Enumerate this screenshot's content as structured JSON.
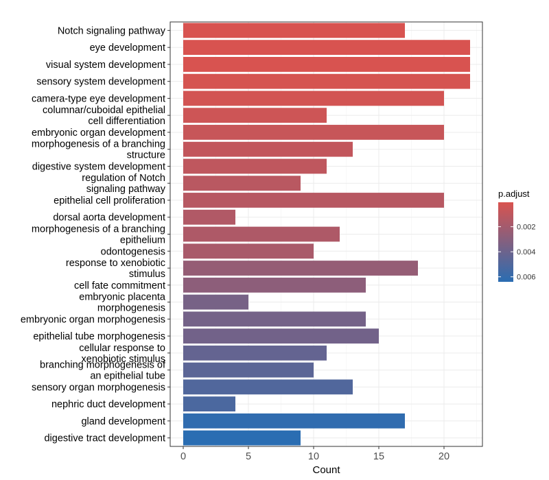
{
  "chart_data": {
    "type": "bar",
    "orientation": "horizontal",
    "xlabel": "Count",
    "ylabel": "",
    "xlim": [
      0,
      23
    ],
    "xticks": [
      0,
      5,
      10,
      15,
      20
    ],
    "grid": true,
    "legend": {
      "title": "p.adjust",
      "position": "right",
      "color_low": "#d9534f",
      "color_high": "#2a6db2",
      "range": [
        5e-05,
        0.0064
      ],
      "ticks": [
        0.002,
        0.004,
        0.006
      ],
      "tick_labels": [
        "0.002",
        "0.004",
        "0.006"
      ]
    },
    "bars": [
      {
        "label": [
          "Notch signaling pathway"
        ],
        "count": 17,
        "p_adjust": 0.0001
      },
      {
        "label": [
          "eye development"
        ],
        "count": 22,
        "p_adjust": 0.0001
      },
      {
        "label": [
          "visual system development"
        ],
        "count": 22,
        "p_adjust": 0.0001
      },
      {
        "label": [
          "sensory system development"
        ],
        "count": 22,
        "p_adjust": 0.0002
      },
      {
        "label": [
          "camera-type eye development"
        ],
        "count": 20,
        "p_adjust": 0.0003
      },
      {
        "label": [
          "columnar/cuboidal epithelial",
          "cell differentiation"
        ],
        "count": 11,
        "p_adjust": 0.0005
      },
      {
        "label": [
          "embryonic organ development"
        ],
        "count": 20,
        "p_adjust": 0.0007
      },
      {
        "label": [
          "morphogenesis of a branching",
          "structure"
        ],
        "count": 13,
        "p_adjust": 0.0009
      },
      {
        "label": [
          "digestive system development"
        ],
        "count": 11,
        "p_adjust": 0.001
      },
      {
        "label": [
          "regulation of Notch",
          "signaling pathway"
        ],
        "count": 9,
        "p_adjust": 0.0012
      },
      {
        "label": [
          "epithelial cell proliferation"
        ],
        "count": 20,
        "p_adjust": 0.0013
      },
      {
        "label": [
          "dorsal aorta development"
        ],
        "count": 4,
        "p_adjust": 0.0015
      },
      {
        "label": [
          "morphogenesis of a branching",
          "epithelium"
        ],
        "count": 12,
        "p_adjust": 0.0016
      },
      {
        "label": [
          "odontogenesis"
        ],
        "count": 10,
        "p_adjust": 0.0018
      },
      {
        "label": [
          "response to xenobiotic",
          "stimulus"
        ],
        "count": 18,
        "p_adjust": 0.0025
      },
      {
        "label": [
          "cell fate commitment"
        ],
        "count": 14,
        "p_adjust": 0.0028
      },
      {
        "label": [
          "embryonic placenta",
          "morphogenesis"
        ],
        "count": 5,
        "p_adjust": 0.0036
      },
      {
        "label": [
          "embryonic organ morphogenesis"
        ],
        "count": 14,
        "p_adjust": 0.0037
      },
      {
        "label": [
          "epithelial tube morphogenesis"
        ],
        "count": 15,
        "p_adjust": 0.0038
      },
      {
        "label": [
          "cellular response to",
          "xenobiotic stimulus"
        ],
        "count": 11,
        "p_adjust": 0.0043
      },
      {
        "label": [
          "branching morphogenesis of",
          "an epithelial tube"
        ],
        "count": 10,
        "p_adjust": 0.0046
      },
      {
        "label": [
          "sensory organ morphogenesis"
        ],
        "count": 13,
        "p_adjust": 0.005
      },
      {
        "label": [
          "nephric duct development"
        ],
        "count": 4,
        "p_adjust": 0.0052
      },
      {
        "label": [
          "gland development"
        ],
        "count": 17,
        "p_adjust": 0.0062
      },
      {
        "label": [
          "digestive tract development"
        ],
        "count": 9,
        "p_adjust": 0.0064
      }
    ]
  }
}
